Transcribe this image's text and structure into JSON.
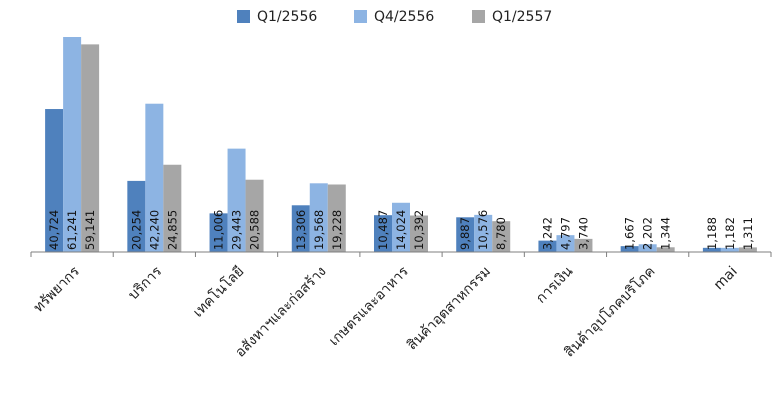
{
  "chart_data": {
    "type": "bar",
    "categories": [
      "ทรัพยากร",
      "บริการ",
      "เทคโนโลยี",
      "อสังหาฯและก่อสร้าง",
      "เกษตรและอาหาร",
      "สินค้าอุตสาหกรรม",
      "การเงิน",
      "สินค้าอุปโภคบริโภค",
      "mai"
    ],
    "series": [
      {
        "name": "Q1/2556",
        "color": "#4F81BD",
        "values": [
          40724,
          20254,
          11006,
          13306,
          10487,
          9887,
          3242,
          1667,
          1188
        ],
        "labels": [
          "40,724",
          "20,254",
          "11,006",
          "13,306",
          "10,487",
          "9,887",
          "3,242",
          "1,667",
          "1,188"
        ]
      },
      {
        "name": "Q4/2556",
        "color": "#8DB4E3",
        "values": [
          61241,
          42240,
          29443,
          19568,
          14024,
          10576,
          4797,
          2202,
          1182
        ],
        "labels": [
          "61,241",
          "42,240",
          "29,443",
          "19,568",
          "14,024",
          "10,576",
          "4,797",
          "2,202",
          "1,182"
        ]
      },
      {
        "name": "Q1/2557",
        "color": "#A6A6A6",
        "values": [
          59141,
          24855,
          20588,
          19228,
          10392,
          8780,
          3740,
          1344,
          1311
        ],
        "labels": [
          "59,141",
          "24,855",
          "20,588",
          "19,228",
          "10,392",
          "8,780",
          "3,740",
          "1,344",
          "1,311"
        ]
      }
    ],
    "ylim": [
      0,
      62000
    ],
    "grid": false,
    "legend": "top-center"
  }
}
